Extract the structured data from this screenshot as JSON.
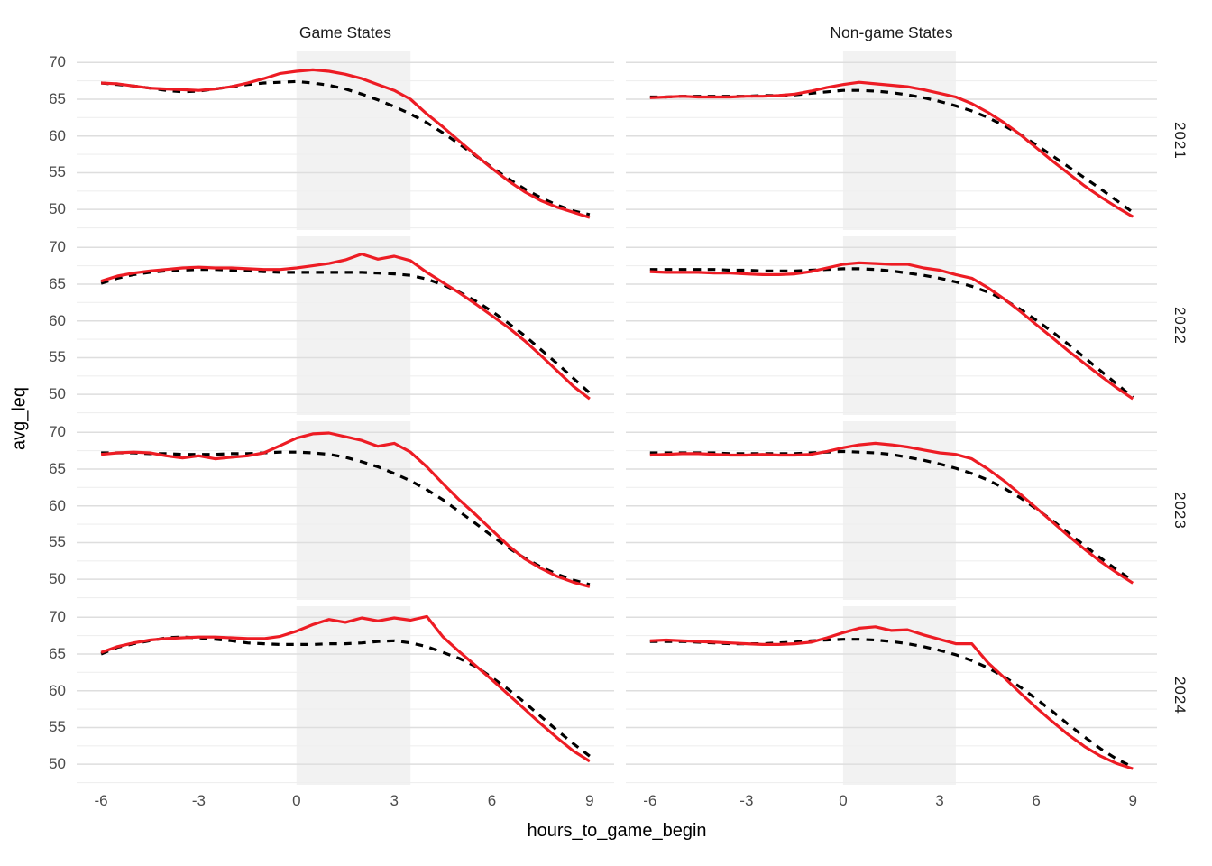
{
  "figure": {
    "col_titles": [
      "Game States",
      "Non-game States"
    ],
    "row_titles": [
      "2021",
      "2022",
      "2023",
      "2024"
    ],
    "x_axis_title": "hours_to_game_begin",
    "y_axis_title": "avg_leq"
  },
  "colors": {
    "line_actual": "#ED1C24",
    "line_baseline": "#000000",
    "shade": "#F2F2F2",
    "grid_major": "#DEDEDE",
    "grid_minor": "#EFEFEF",
    "tick_text": "#4A4A4A",
    "title_text": "#1B1B1B",
    "background": "#FFFFFF"
  },
  "chart_data": {
    "type": "line",
    "title": "",
    "xlabel": "hours_to_game_begin",
    "ylabel": "avg_leq",
    "facet": {
      "cols": [
        "Game States",
        "Non-game States"
      ],
      "rows": [
        "2021",
        "2022",
        "2023",
        "2024"
      ],
      "row_label_position": "right-rotated",
      "col_label_position": "top"
    },
    "grid": "horizontal-only",
    "legend": "none",
    "x_domain": [
      -6.75,
      9.75
    ],
    "y_domain": [
      47.2,
      71.5
    ],
    "x_ticks": [
      -6,
      -3,
      0,
      3,
      6,
      9
    ],
    "y_ticks": [
      70,
      65,
      60,
      55,
      50
    ],
    "y_minor_ticks": [
      47.5,
      52.5,
      57.5,
      62.5,
      67.5
    ],
    "shaded_x_range": [
      0,
      3.5
    ],
    "x": [
      -6,
      -5.5,
      -5,
      -4.5,
      -4,
      -3.5,
      -3,
      -2.5,
      -2,
      -1.5,
      -1,
      -0.5,
      0,
      0.5,
      1,
      1.5,
      2,
      2.5,
      3,
      3.5,
      4,
      4.5,
      5,
      5.5,
      6,
      6.5,
      7,
      7.5,
      8,
      8.5,
      9
    ],
    "panels": [
      {
        "row": "2021",
        "col": "Game States",
        "series": [
          {
            "name": "solid-red-line",
            "values": [
              67.2,
              67.1,
              66.8,
              66.5,
              66.4,
              66.3,
              66.2,
              66.4,
              66.7,
              67.2,
              67.8,
              68.5,
              68.8,
              69.0,
              68.8,
              68.4,
              67.8,
              67.0,
              66.2,
              65.0,
              63.0,
              61.2,
              59.3,
              57.4,
              55.6,
              53.9,
              52.4,
              51.2,
              50.3,
              49.6,
              48.9
            ]
          },
          {
            "name": "dashed-black-line",
            "values": [
              67.2,
              67.0,
              66.8,
              66.5,
              66.2,
              66.0,
              66.1,
              66.4,
              66.7,
              67.0,
              67.2,
              67.3,
              67.4,
              67.2,
              66.9,
              66.4,
              65.7,
              64.9,
              64.0,
              63.0,
              61.8,
              60.4,
              58.9,
              57.3,
              55.7,
              54.2,
              52.8,
              51.6,
              50.6,
              49.8,
              49.3
            ]
          }
        ]
      },
      {
        "row": "2021",
        "col": "Non-game States",
        "series": [
          {
            "name": "solid-red-line",
            "values": [
              65.2,
              65.3,
              65.4,
              65.3,
              65.3,
              65.3,
              65.4,
              65.4,
              65.5,
              65.7,
              66.1,
              66.6,
              67.0,
              67.3,
              67.1,
              66.9,
              66.7,
              66.3,
              65.8,
              65.3,
              64.4,
              63.2,
              61.8,
              60.2,
              58.4,
              56.6,
              54.9,
              53.2,
              51.7,
              50.3,
              49.0
            ]
          },
          {
            "name": "dashed-black-line",
            "values": [
              65.3,
              65.3,
              65.4,
              65.4,
              65.4,
              65.4,
              65.4,
              65.5,
              65.5,
              65.6,
              65.8,
              66.0,
              66.2,
              66.2,
              66.1,
              65.9,
              65.6,
              65.2,
              64.7,
              64.1,
              63.4,
              62.5,
              61.4,
              60.2,
              58.8,
              57.3,
              55.8,
              54.3,
              52.8,
              51.2,
              49.6
            ]
          }
        ]
      },
      {
        "row": "2022",
        "col": "Game States",
        "series": [
          {
            "name": "solid-red-line",
            "values": [
              65.4,
              66.1,
              66.5,
              66.8,
              67.0,
              67.2,
              67.3,
              67.2,
              67.2,
              67.1,
              67.0,
              67.0,
              67.2,
              67.5,
              67.8,
              68.3,
              69.1,
              68.4,
              68.8,
              68.2,
              66.6,
              65.2,
              63.8,
              62.3,
              60.7,
              59.1,
              57.3,
              55.3,
              53.2,
              51.1,
              49.4
            ]
          },
          {
            "name": "dashed-black-line",
            "values": [
              65.1,
              65.8,
              66.3,
              66.6,
              66.8,
              66.9,
              67.0,
              67.0,
              66.9,
              66.8,
              66.7,
              66.6,
              66.6,
              66.6,
              66.6,
              66.6,
              66.6,
              66.5,
              66.4,
              66.2,
              65.7,
              64.9,
              63.9,
              62.7,
              61.3,
              59.7,
              58.0,
              56.1,
              54.2,
              52.2,
              50.2
            ]
          }
        ]
      },
      {
        "row": "2022",
        "col": "Non-game States",
        "series": [
          {
            "name": "solid-red-line",
            "values": [
              66.7,
              66.6,
              66.6,
              66.6,
              66.5,
              66.5,
              66.4,
              66.3,
              66.3,
              66.4,
              66.7,
              67.2,
              67.7,
              67.9,
              67.8,
              67.7,
              67.7,
              67.2,
              66.9,
              66.3,
              65.8,
              64.5,
              63.0,
              61.3,
              59.5,
              57.7,
              55.9,
              54.2,
              52.5,
              50.9,
              49.4
            ]
          },
          {
            "name": "dashed-black-line",
            "values": [
              67.0,
              67.0,
              67.0,
              67.0,
              67.0,
              66.9,
              66.9,
              66.8,
              66.8,
              66.8,
              66.9,
              67.0,
              67.1,
              67.1,
              67.0,
              66.8,
              66.5,
              66.2,
              65.8,
              65.3,
              64.7,
              63.9,
              62.9,
              61.6,
              60.1,
              58.5,
              56.8,
              55.0,
              53.2,
              51.4,
              49.6
            ]
          }
        ]
      },
      {
        "row": "2023",
        "col": "Game States",
        "series": [
          {
            "name": "solid-red-line",
            "values": [
              67.0,
              67.2,
              67.3,
              67.2,
              66.8,
              66.5,
              66.8,
              66.4,
              66.6,
              66.8,
              67.2,
              68.2,
              69.2,
              69.8,
              69.9,
              69.4,
              68.9,
              68.1,
              68.5,
              67.3,
              65.3,
              63.0,
              60.8,
              58.8,
              56.7,
              54.6,
              52.8,
              51.5,
              50.4,
              49.6,
              49.0
            ]
          },
          {
            "name": "dashed-black-line",
            "values": [
              67.2,
              67.2,
              67.2,
              67.1,
              67.1,
              67.0,
              67.0,
              67.0,
              67.1,
              67.1,
              67.2,
              67.3,
              67.3,
              67.2,
              67.0,
              66.6,
              66.0,
              65.3,
              64.4,
              63.4,
              62.2,
              60.8,
              59.2,
              57.6,
              55.9,
              54.3,
              52.9,
              51.7,
              50.7,
              49.9,
              49.3
            ]
          }
        ]
      },
      {
        "row": "2023",
        "col": "Non-game States",
        "series": [
          {
            "name": "solid-red-line",
            "values": [
              66.9,
              67.0,
              67.1,
              67.1,
              67.0,
              66.9,
              66.9,
              67.0,
              66.9,
              66.9,
              67.0,
              67.4,
              67.9,
              68.3,
              68.5,
              68.3,
              68.0,
              67.6,
              67.2,
              67.0,
              66.4,
              65.0,
              63.4,
              61.6,
              59.7,
              57.8,
              55.9,
              54.1,
              52.4,
              50.9,
              49.5
            ]
          },
          {
            "name": "dashed-black-line",
            "values": [
              67.2,
              67.2,
              67.2,
              67.2,
              67.2,
              67.1,
              67.1,
              67.1,
              67.1,
              67.1,
              67.2,
              67.3,
              67.4,
              67.3,
              67.2,
              67.0,
              66.6,
              66.2,
              65.7,
              65.1,
              64.4,
              63.5,
              62.4,
              61.1,
              59.6,
              58.0,
              56.3,
              54.6,
              52.9,
              51.3,
              49.8
            ]
          }
        ]
      },
      {
        "row": "2024",
        "col": "Game States",
        "series": [
          {
            "name": "solid-red-line",
            "values": [
              65.2,
              66.0,
              66.5,
              66.9,
              67.1,
              67.2,
              67.3,
              67.3,
              67.2,
              67.1,
              67.1,
              67.4,
              68.1,
              69.0,
              69.7,
              69.3,
              69.9,
              69.5,
              69.9,
              69.6,
              70.1,
              67.3,
              65.3,
              63.4,
              61.5,
              59.5,
              57.5,
              55.5,
              53.6,
              51.8,
              50.4
            ]
          },
          {
            "name": "dashed-black-line",
            "values": [
              65.0,
              65.9,
              66.4,
              66.8,
              67.2,
              67.3,
              67.2,
              67.0,
              66.8,
              66.5,
              66.4,
              66.3,
              66.3,
              66.3,
              66.4,
              66.4,
              66.5,
              66.7,
              66.8,
              66.5,
              66.0,
              65.2,
              64.4,
              63.3,
              61.8,
              60.2,
              58.4,
              56.5,
              54.6,
              52.8,
              51.1
            ]
          }
        ]
      },
      {
        "row": "2024",
        "col": "Non-game States",
        "series": [
          {
            "name": "solid-red-line",
            "values": [
              66.8,
              66.9,
              66.8,
              66.7,
              66.6,
              66.5,
              66.4,
              66.3,
              66.3,
              66.4,
              66.6,
              67.2,
              67.9,
              68.5,
              68.7,
              68.2,
              68.3,
              67.6,
              67.0,
              66.4,
              66.4,
              63.8,
              61.8,
              59.7,
              57.7,
              55.8,
              54.0,
              52.4,
              51.1,
              50.1,
              49.4
            ]
          },
          {
            "name": "dashed-black-line",
            "values": [
              66.7,
              66.7,
              66.7,
              66.6,
              66.5,
              66.4,
              66.4,
              66.4,
              66.5,
              66.6,
              66.8,
              66.9,
              67.0,
              67.0,
              66.9,
              66.7,
              66.4,
              66.0,
              65.5,
              64.9,
              64.1,
              63.1,
              61.9,
              60.5,
              58.9,
              57.2,
              55.4,
              53.7,
              52.1,
              50.7,
              49.6
            ]
          }
        ]
      }
    ]
  }
}
